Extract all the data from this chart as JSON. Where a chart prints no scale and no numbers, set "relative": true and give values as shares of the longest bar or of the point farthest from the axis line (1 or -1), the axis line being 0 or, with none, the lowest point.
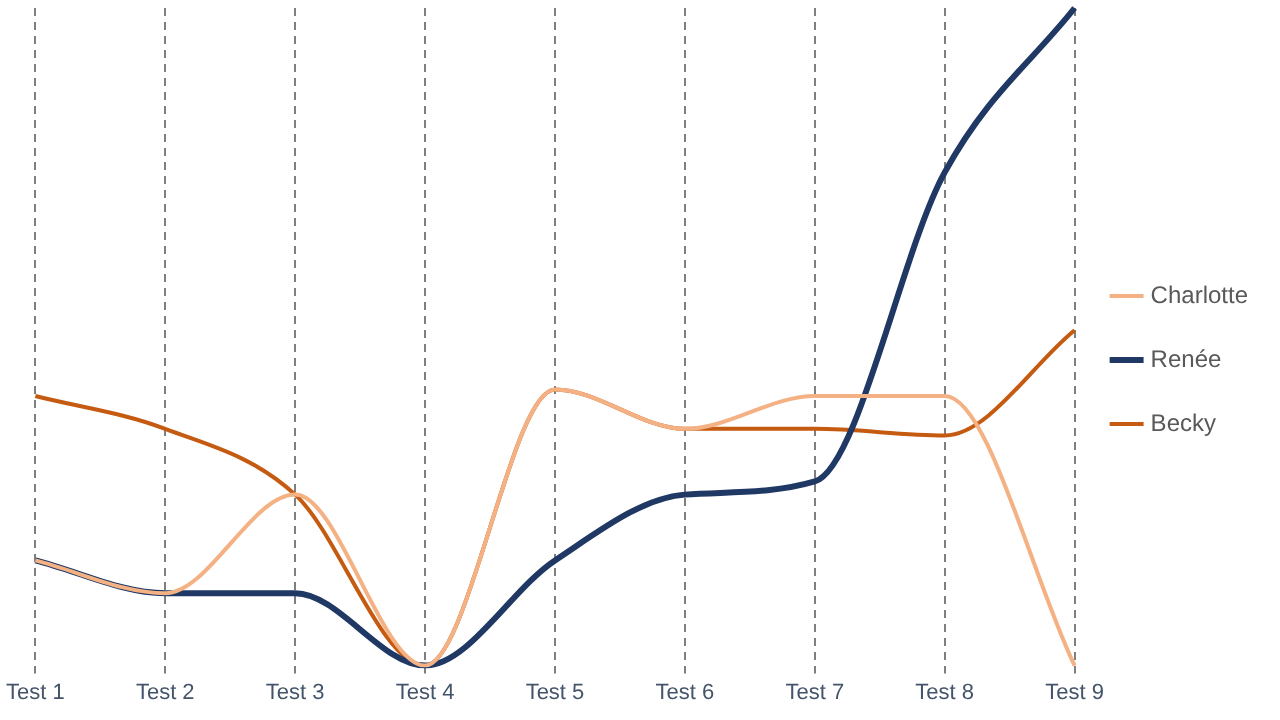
{
  "chart_data": {
    "type": "line",
    "relative": true,
    "categories": [
      "Test 1",
      "Test 2",
      "Test 3",
      "Test 4",
      "Test 5",
      "Test 6",
      "Test 7",
      "Test 8",
      "Test 9"
    ],
    "series": [
      {
        "name": "Charlotte",
        "color": "#f4b183",
        "values": [
          0.16,
          0.11,
          0.26,
          0,
          0.42,
          0.36,
          0.41,
          0.41,
          0
        ]
      },
      {
        "name": "Renée",
        "color": "#203864",
        "values": [
          0.16,
          0.11,
          0.11,
          0,
          0.16,
          0.26,
          0.28,
          0.75,
          1
        ]
      },
      {
        "name": "Becky",
        "color": "#c55a11",
        "values": [
          0.41,
          0.36,
          0.26,
          0,
          0.42,
          0.36,
          0.36,
          0.35,
          0.51
        ]
      }
    ],
    "grid": "x",
    "legend": "right",
    "marker": "none",
    "line_style": "solid"
  }
}
